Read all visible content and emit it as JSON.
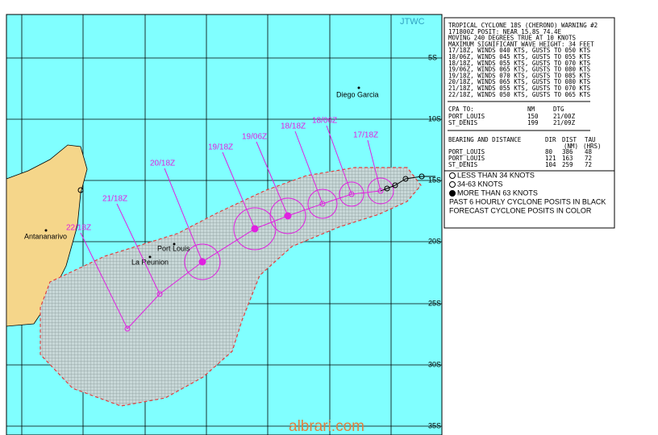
{
  "jtwc": "JTWC",
  "lat_labels": [
    "5S",
    "10S",
    "15S",
    "20S",
    "25S",
    "30S",
    "35S"
  ],
  "places": [
    "Diego Garcia",
    "Antananarivo",
    "Port Louis",
    "La Reunion"
  ],
  "track_labels": [
    "17/18Z",
    "18/06Z",
    "18/18Z",
    "19/06Z",
    "19/18Z",
    "20/18Z",
    "21/18Z",
    "22/18Z"
  ],
  "warning": {
    "lines": [
      "TROPICAL CYCLONE 18S (CHERONO) WARNING #2",
      "171800Z POSIT: NEAR 15.8S 74.4E",
      "MOVING 240 DEGREES TRUE AT 10 KNOTS",
      "MAXIMUM SIGNIFICANT WAVE HEIGHT: 34 FEET",
      "17/18Z, WINDS 040 KTS, GUSTS TO 050 KTS",
      "18/06Z, WINDS 045 KTS, GUSTS TO 055 KTS",
      "18/18Z, WINDS 055 KTS, GUSTS TO 070 KTS",
      "19/06Z, WINDS 065 KTS, GUSTS TO 080 KTS",
      "19/18Z, WINDS 070 KTS, GUSTS TO 085 KTS",
      "20/18Z, WINDS 065 KTS, GUSTS TO 080 KTS",
      "21/18Z, WINDS 055 KTS, GUSTS TO 070 KTS",
      "22/18Z, WINDS 050 KTS, GUSTS TO 065 KTS"
    ],
    "cpa_header": [
      "CPA TO:",
      "NM",
      "DTG"
    ],
    "cpa_rows": [
      [
        "PORT_LOUIS",
        "150",
        "21/00Z"
      ],
      [
        "ST_DENIS",
        "199",
        "21/09Z"
      ]
    ],
    "bd_header": [
      "BEARING AND DISTANCE",
      "DIR",
      "DIST",
      "TAU"
    ],
    "bd_sub": [
      "(NM)",
      "(HRS)"
    ],
    "bd_rows": [
      [
        "PORT_LOUIS",
        "80",
        "386",
        "48"
      ],
      [
        "PORT_LOUIS",
        "121",
        "163",
        "72"
      ],
      [
        "ST_DENIS",
        "104",
        "259",
        "72"
      ]
    ]
  },
  "legend": {
    "items": [
      "LESS THAN 34 KNOTS",
      "34-63 KNOTS",
      "MORE THAN 63 KNOTS"
    ],
    "notes": [
      "PAST 6 HOURLY CYCLONE POSITS IN BLACK",
      "FORECAST CYCLONE POSITS IN COLOR"
    ]
  },
  "watermark": "albrari.com"
}
